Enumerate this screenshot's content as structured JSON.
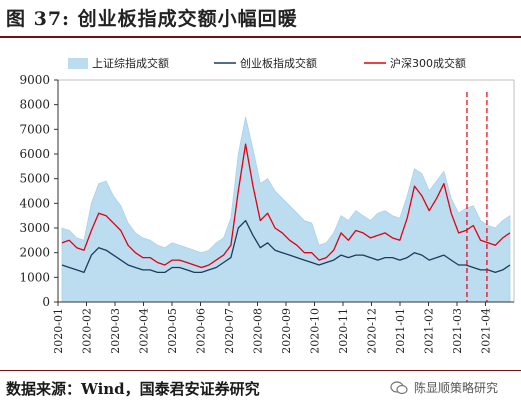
{
  "figure": {
    "title": "图 37: 创业板指成交额小幅回暖",
    "source": "数据来源：Wind，国泰君安证券研究",
    "watermark": "陈显顺策略研究",
    "watermark_icon": "wechat-icon"
  },
  "colors": {
    "area": "#bcdcf0",
    "area_stroke": "#a9d2ec",
    "chinext": "#1b3d5c",
    "hs300": "#e3000f",
    "title_rule": "#7a0f12",
    "dashed": "#e3000f"
  },
  "chart_data": {
    "type": "line",
    "title": "",
    "xlabel": "",
    "ylabel": "",
    "ylim": [
      0,
      9000
    ],
    "yticks": [
      0,
      1000,
      2000,
      3000,
      4000,
      5000,
      6000,
      7000,
      8000,
      9000
    ],
    "xticks": [
      "2020-01",
      "2020-02",
      "2020-03",
      "2020-04",
      "2020-05",
      "2020-06",
      "2020-07",
      "2020-08",
      "2020-09",
      "2020-10",
      "2020-11",
      "2020-12",
      "2021-01",
      "2021-02",
      "2021-03",
      "2021-04"
    ],
    "grid": false,
    "legend_position": "top",
    "x": [
      "2020-01",
      "2020-01",
      "2020-01",
      "2020-02",
      "2020-02",
      "2020-02",
      "2020-02",
      "2020-03",
      "2020-03",
      "2020-03",
      "2020-03",
      "2020-04",
      "2020-04",
      "2020-04",
      "2020-04",
      "2020-05",
      "2020-05",
      "2020-05",
      "2020-05",
      "2020-06",
      "2020-06",
      "2020-06",
      "2020-06",
      "2020-07",
      "2020-07",
      "2020-07",
      "2020-07",
      "2020-08",
      "2020-08",
      "2020-08",
      "2020-08",
      "2020-09",
      "2020-09",
      "2020-09",
      "2020-09",
      "2020-10",
      "2020-10",
      "2020-10",
      "2020-10",
      "2020-11",
      "2020-11",
      "2020-11",
      "2020-11",
      "2020-12",
      "2020-12",
      "2020-12",
      "2020-12",
      "2021-01",
      "2021-01",
      "2021-01",
      "2021-01",
      "2021-02",
      "2021-02",
      "2021-02",
      "2021-02",
      "2021-03",
      "2021-03",
      "2021-03",
      "2021-03",
      "2021-04",
      "2021-04",
      "2021-04"
    ],
    "series": [
      {
        "name": "上证综指成交额",
        "style": "area",
        "values": [
          3000,
          2900,
          2600,
          2500,
          4000,
          4800,
          4900,
          4300,
          3900,
          3200,
          2800,
          2600,
          2500,
          2300,
          2200,
          2400,
          2300,
          2200,
          2100,
          2000,
          2100,
          2400,
          2600,
          3400,
          6000,
          7500,
          6200,
          4800,
          5000,
          4500,
          4200,
          3900,
          3600,
          3300,
          3200,
          2300,
          2400,
          2800,
          3500,
          3300,
          3700,
          3500,
          3300,
          3600,
          3700,
          3500,
          3400,
          4300,
          5400,
          5200,
          4500,
          4900,
          5300,
          4200,
          3600,
          3800,
          3900,
          3300,
          3100,
          3000,
          3300,
          3500
        ]
      },
      {
        "name": "创业板指成交额",
        "style": "line",
        "values": [
          1500,
          1400,
          1300,
          1200,
          1900,
          2200,
          2100,
          1900,
          1700,
          1500,
          1400,
          1300,
          1300,
          1200,
          1200,
          1400,
          1400,
          1300,
          1200,
          1200,
          1300,
          1400,
          1600,
          1800,
          3000,
          3300,
          2700,
          2200,
          2400,
          2100,
          2000,
          1900,
          1800,
          1700,
          1600,
          1500,
          1600,
          1700,
          1900,
          1800,
          1900,
          1900,
          1800,
          1700,
          1800,
          1800,
          1700,
          1800,
          2000,
          1900,
          1700,
          1800,
          1900,
          1700,
          1500,
          1500,
          1400,
          1300,
          1300,
          1200,
          1300,
          1500
        ]
      },
      {
        "name": "沪深300成交额",
        "style": "line",
        "values": [
          2400,
          2500,
          2200,
          2100,
          2900,
          3600,
          3500,
          3200,
          2900,
          2300,
          2000,
          1800,
          1800,
          1600,
          1500,
          1700,
          1700,
          1600,
          1500,
          1400,
          1500,
          1700,
          1900,
          2300,
          4500,
          6400,
          4700,
          3300,
          3600,
          3000,
          2800,
          2500,
          2300,
          2000,
          2000,
          1700,
          1800,
          2100,
          2800,
          2500,
          2900,
          2800,
          2600,
          2700,
          2800,
          2600,
          2500,
          3400,
          4700,
          4300,
          3700,
          4200,
          4800,
          3600,
          2800,
          2900,
          3100,
          2500,
          2400,
          2300,
          2600,
          2800
        ]
      }
    ],
    "markers": [
      {
        "label": "",
        "x": "2021-03",
        "style": "dashed-vertical"
      },
      {
        "label": "",
        "x": "2021-04",
        "style": "dashed-vertical"
      }
    ]
  }
}
